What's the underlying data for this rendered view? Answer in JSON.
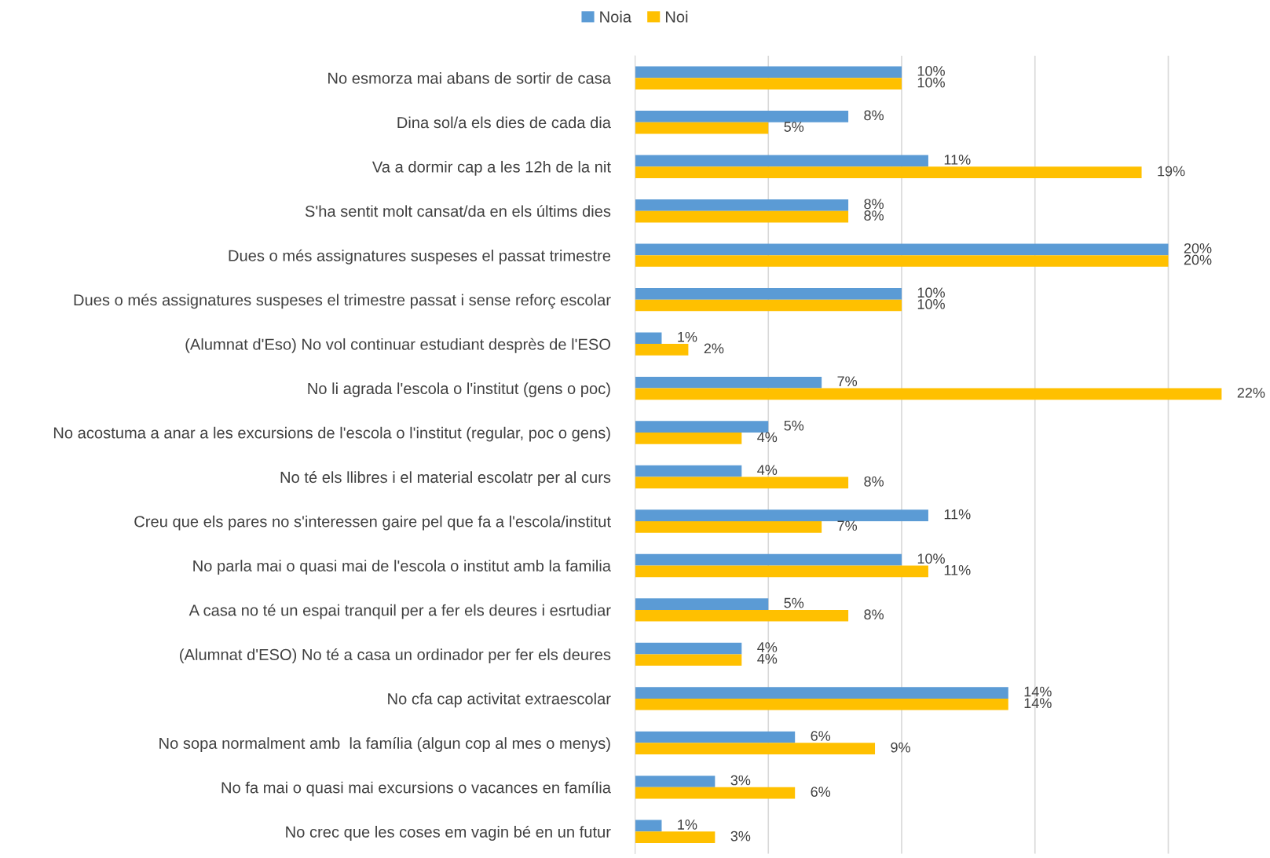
{
  "chart_data": {
    "type": "bar",
    "orientation": "horizontal",
    "categories": [
      "No esmorza mai abans de sortir de casa",
      "Dina sol/a els dies de cada dia",
      "Va a dormir cap a les 12h de la nit",
      "S'ha sentit molt cansat/da en els últims dies",
      "Dues o més assignatures suspeses el passat trimestre",
      "Dues o més assignatures suspeses el trimestre passat i sense reforç escolar",
      "(Alumnat d'Eso) No vol continuar estudiant desprès de l'ESO",
      "No li agrada l'escola o l'institut (gens o poc)",
      "No acostuma a anar a les excursions de l'escola o l'institut (regular, poc o gens)",
      "No té els llibres i el material escolatr per al curs",
      "Creu que els pares no s'interessen gaire pel que fa a l'escola/institut",
      "No parla mai o quasi mai de l'escola o institut amb la familia",
      "A casa no té un espai tranquil per a fer els deures i esrtudiar",
      "(Alumnat d'ESO) No té a casa un ordinador per fer els deures",
      "No cfa cap activitat extraescolar",
      "No sopa normalment amb  la família (algun cop al mes o menys)",
      "No fa mai o quasi mai excursions o vacances en família",
      "No crec que les coses em vagin bé en un futur"
    ],
    "series": [
      {
        "name": "Noia",
        "color": "#5b9bd5",
        "values": [
          10,
          8,
          11,
          8,
          20,
          10,
          1,
          7,
          5,
          4,
          11,
          10,
          5,
          4,
          14,
          6,
          3,
          1
        ],
        "value_labels": [
          "10%",
          "8%",
          "11%",
          "8%",
          "20%",
          "10%",
          "1%",
          "7%",
          "5%",
          "4%",
          "11%",
          "10%",
          "5%",
          "4%",
          "14%",
          "6%",
          "3%",
          "1%"
        ]
      },
      {
        "name": "Noi",
        "color": "#ffc000",
        "values": [
          10,
          5,
          19,
          8,
          20,
          10,
          2,
          22,
          4,
          8,
          7,
          11,
          8,
          4,
          14,
          9,
          6,
          3
        ],
        "value_labels": [
          "10%",
          "5%",
          "19%",
          "8%",
          "20%",
          "10%",
          "2%",
          "22%",
          "4%",
          "8%",
          "7%",
          "11%",
          "8%",
          "4%",
          "14%",
          "9%",
          "6%",
          "3%"
        ]
      }
    ],
    "xticks": [
      {
        "value": 0,
        "label": null
      },
      {
        "value": 5,
        "label": null
      },
      {
        "value": 10,
        "label": null
      },
      {
        "value": 15,
        "label": null
      },
      {
        "value": 20,
        "label": null
      }
    ],
    "tick_labels": "y",
    "grid": "x",
    "legend": "top"
  }
}
